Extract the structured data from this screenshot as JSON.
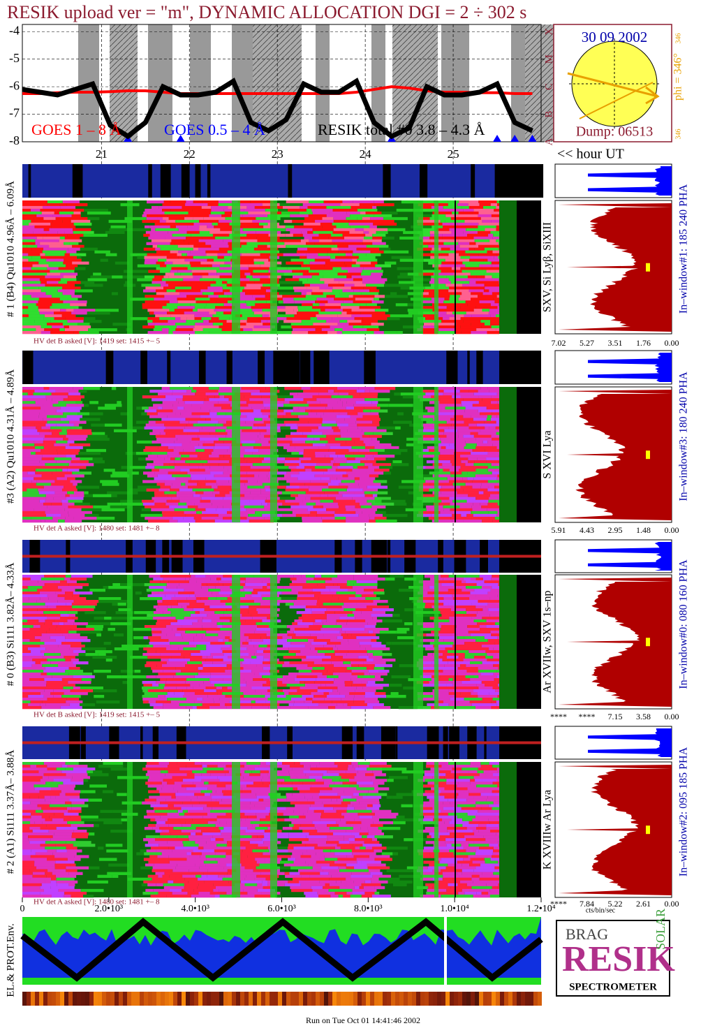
{
  "title": "RESIK upload ver = \"m\", DYNAMIC ALLOCATION  DGI =   2 ÷ 302 s",
  "chart_data": [
    {
      "type": "line",
      "x": [
        20.1,
        20.3,
        20.5,
        20.7,
        20.9,
        21.1,
        21.3,
        21.5,
        21.7,
        21.9,
        22.1,
        22.3,
        22.5,
        22.7,
        22.9,
        23.1,
        23.3,
        23.5,
        23.7,
        23.9,
        24.1,
        24.3,
        24.5,
        24.7,
        24.9,
        25.1,
        25.3,
        25.5,
        25.7,
        25.9
      ],
      "series": [
        {
          "name": "GOES 1 – 8 Å",
          "color": "#ff0000",
          "values": [
            -6.25,
            -6.25,
            -6.22,
            -6.2,
            -6.2,
            -6.18,
            -6.15,
            -6.15,
            -6.2,
            -6.25,
            -6.25,
            -6.25,
            -6.25,
            -6.25,
            -6.25,
            -6.25,
            -6.25,
            -6.25,
            -6.25,
            -6.2,
            -6.1,
            -6.0,
            -6.05,
            -6.15,
            -6.2,
            -6.2,
            -6.22,
            -6.22,
            -6.25,
            -6.25
          ]
        },
        {
          "name": "GOES 0.5 – 4 Å",
          "color": "#0000ff",
          "values": [
            null,
            null,
            null,
            null,
            null,
            null,
            -8,
            null,
            null,
            -8,
            null,
            null,
            null,
            null,
            null,
            null,
            null,
            null,
            null,
            null,
            null,
            -8,
            null,
            null,
            null,
            null,
            null,
            -8,
            -8,
            -8
          ]
        },
        {
          "name": "RESIK total #0  3.8 – 4.3 Å",
          "color": "#000000",
          "values": [
            -6.1,
            -6.2,
            -6.3,
            -6.1,
            -5.9,
            -7.4,
            -7.8,
            -7.3,
            -6.0,
            -6.3,
            -6.3,
            -6.2,
            -5.8,
            -7.3,
            -7.6,
            -7.2,
            -5.9,
            -6.2,
            -6.2,
            -5.8,
            -7.3,
            -7.8,
            -7.5,
            -6.0,
            -6.3,
            -6.3,
            -6.2,
            -5.9,
            -7.3,
            -7.6
          ]
        }
      ],
      "xlim": [
        20.1,
        26.0
      ],
      "xticks": [
        21,
        22,
        23,
        24,
        25
      ],
      "ylim": [
        -3.74,
        -8
      ],
      "yticks": [
        -4,
        -5,
        -6,
        -7,
        -8
      ],
      "y2lim": [
        -3.74,
        -8
      ],
      "y2ticks": [
        {
          "value": -4,
          "label": "X"
        },
        {
          "value": -5,
          "label": "M"
        },
        {
          "value": -6,
          "label": "C"
        },
        {
          "value": -7,
          "label": "B"
        },
        {
          "value": -8,
          "label": "A"
        }
      ],
      "x_label": "<< hour UT"
    },
    {
      "type": "spectrogram",
      "xlim": [
        0,
        12000
      ],
      "xticks": [
        0,
        {
          "value": 2000,
          "label": "2.0•10³"
        },
        {
          "value": 4000,
          "label": "4.0•10³"
        },
        {
          "value": 6000,
          "label": "6.0•10³"
        },
        {
          "value": 8000,
          "label": "8.0•10³"
        },
        {
          "value": 10000,
          "label": "1.0•10⁴"
        },
        {
          "value": 12000,
          "label": "1.2•10⁴"
        }
      ]
    }
  ],
  "sun": {
    "date": "30 09 2002",
    "phi": "phi = 346°",
    "top": "346",
    "bottom": "346",
    "dump": "Dump: 06513"
  },
  "panels": [
    {
      "left": "# 1 (B4) Qu1010 4.96Å – 6.09Å",
      "right": "SXV, Si Lyβ, SiXIII",
      "hv": "HV det B asked [V]:  1419 set:  1415 +–   5",
      "window": "In–window#1:  185 240 PHA",
      "ticks": [
        "7.02",
        "5.27",
        "3.51",
        "1.76",
        "0.00"
      ]
    },
    {
      "left": "#3 (A2) Qu1010  4.31Å – 4.89Å",
      "right": "S XVI Lya",
      "hv": "HV det A asked [V]:  1480 set:  1481 +–   8",
      "window": "In–window#3:  180 240 PHA",
      "ticks": [
        "5.91",
        "4.43",
        "2.95",
        "1.48",
        "0.00"
      ]
    },
    {
      "left": "# 0 (B3) Si111  3.82Å– 4.33Å",
      "right": "Ar XVIIw,  SXV 1s–np",
      "hv": "HV det B asked [V]:  1419 set:  1415 +–   5",
      "window": "In–window#0:  080 160 PHA",
      "ticks": [
        "****",
        "****",
        "7.15",
        "3.58",
        "0.00"
      ]
    },
    {
      "left": "# 2 (A1) Si111  3.37Å– 3.88Å",
      "right": "K XVIIIw  Ar Lya",
      "hv": "HV det A asked [V]:  1480 set:  1481 +–   8",
      "window": "In–window#2:  095 185 PHA",
      "ticks": [
        "****",
        "7.84",
        "5.22",
        "2.61",
        "0.00"
      ]
    }
  ],
  "hist_unit": "cts/bin/sec",
  "env_label": "EL.& PROT.Env.",
  "logo": {
    "a": "BRAG",
    "b": "RESIK",
    "c": "SOLAR",
    "d": "SPECTROMETER"
  },
  "footer": "Run on Tue Oct 01 14:41:46 2002"
}
